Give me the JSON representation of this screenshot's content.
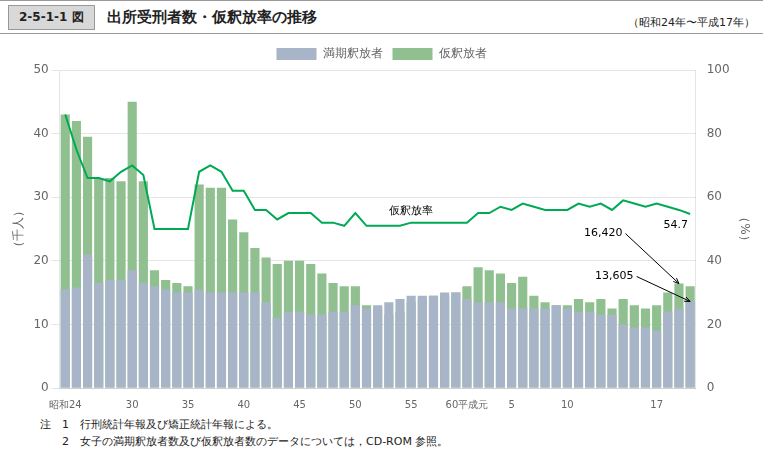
{
  "chart_data": {
    "type": "bar",
    "figure_label": "2-5-1-1 図",
    "title": "出所受刑者数・仮釈放率の推移",
    "subtitle": "（昭和24年〜平成17年）",
    "ylabel": "（千人）",
    "y2label": "（%）",
    "notes": [
      "注　1　行刑統計年報及び矯正統計年報による。",
      "　　2　女子の満期釈放者数及び仮釈放者数のデータについては，CD-ROM 参照。"
    ],
    "categories": [
      "昭和24",
      null,
      null,
      null,
      null,
      null,
      "30",
      null,
      null,
      null,
      null,
      "35",
      null,
      null,
      null,
      null,
      "40",
      null,
      null,
      null,
      null,
      "45",
      null,
      null,
      null,
      null,
      "50",
      null,
      null,
      null,
      null,
      "55",
      null,
      null,
      null,
      null,
      "60平成元",
      null,
      null,
      null,
      "5",
      null,
      null,
      null,
      null,
      "10",
      null,
      null,
      null,
      null,
      null,
      null,
      null,
      "17",
      null,
      null,
      null
    ],
    "series": [
      {
        "name": "満期釈放者",
        "type": "bar",
        "color": "#a8b4c8",
        "values": [
          15.5,
          15.8,
          21.0,
          16.5,
          17.0,
          17.0,
          18.5,
          16.5,
          16.0,
          15.5,
          15.0,
          15.0,
          15.5,
          15.0,
          15.0,
          15.0,
          15.0,
          15.0,
          13.5,
          11.0,
          12.0,
          12.0,
          11.5,
          11.5,
          12.0,
          12.0,
          13.0,
          12.5,
          13.0,
          13.5,
          14.0,
          14.5,
          14.5,
          14.5,
          15.0,
          15.0,
          14.0,
          13.5,
          13.5,
          13.5,
          12.5,
          12.5,
          12.5,
          12.5,
          13.0,
          12.5,
          12.0,
          12.0,
          11.5,
          11.5,
          10.0,
          9.5,
          9.5,
          9.0,
          12.0,
          12.5,
          13.605
        ]
      },
      {
        "name": "仮釈放者",
        "type": "bar",
        "color": "#90c090",
        "values": [
          43.0,
          42.0,
          39.5,
          33.0,
          33.0,
          32.5,
          45.0,
          32.5,
          18.5,
          17.0,
          16.5,
          16.0,
          32.0,
          31.5,
          31.5,
          26.5,
          24.5,
          22.0,
          20.5,
          19.5,
          20.0,
          20.0,
          19.5,
          18.0,
          16.5,
          16.0,
          16.0,
          13.0,
          12.5,
          11.5,
          12.0,
          13.5,
          14.0,
          14.5,
          14.5,
          15.0,
          16.0,
          19.0,
          18.5,
          18.0,
          16.5,
          17.5,
          14.5,
          13.5,
          13.0,
          13.0,
          14.0,
          13.5,
          14.0,
          12.5,
          14.0,
          13.0,
          12.5,
          13.0,
          15.0,
          16.42,
          16.0
        ]
      },
      {
        "name": "仮釈放率",
        "type": "line",
        "axis": "y2",
        "color": "#00aa55",
        "values": [
          86,
          75,
          66,
          66,
          65,
          68,
          70,
          67,
          50,
          50,
          50,
          50,
          68,
          70,
          68,
          62,
          62,
          56,
          56,
          53,
          55,
          55,
          55,
          52,
          52,
          51,
          55,
          51,
          51,
          51,
          51,
          52,
          52,
          52,
          52,
          52,
          52,
          55,
          55,
          57,
          56,
          58,
          57,
          56,
          56,
          56,
          58,
          57,
          58,
          56,
          59,
          58,
          57,
          58,
          57,
          56,
          54.7
        ]
      }
    ],
    "annotations": [
      {
        "text": "16,420",
        "series": "仮釈放者",
        "index": 55
      },
      {
        "text": "13,605",
        "series": "満期釈放者",
        "index": 56
      },
      {
        "text": "54.7",
        "series": "仮釈放率",
        "index": 56
      }
    ],
    "ylim": [
      0,
      50
    ],
    "yticks": [
      0,
      10,
      20,
      30,
      40,
      50
    ],
    "y2lim": [
      0,
      100
    ],
    "y2ticks": [
      0,
      20,
      40,
      60,
      80,
      100
    ],
    "grid": true,
    "legend": "top"
  }
}
